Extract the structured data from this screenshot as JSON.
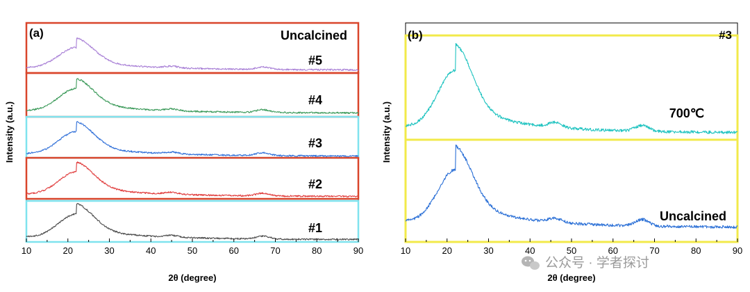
{
  "chart_data": [
    {
      "type": "line",
      "panel_label": "(a)",
      "title": "Uncalcined",
      "xlabel": "2θ (degree)",
      "ylabel": "Intensity (a.u.)",
      "xlim": [
        10,
        90
      ],
      "xticks": [
        "10",
        "20",
        "30",
        "40",
        "50",
        "60",
        "70",
        "80",
        "90"
      ],
      "stacked": true,
      "series": [
        {
          "name": "#5",
          "color": "#a87fd6",
          "box_color": "#d9452b",
          "peaks": [
            {
              "x": 22,
              "rel": 1.0
            },
            {
              "x": 45,
              "rel": 0.08
            },
            {
              "x": 67,
              "rel": 0.12
            }
          ]
        },
        {
          "name": "#4",
          "color": "#3c9a5a",
          "box_color": "#d9452b",
          "peaks": [
            {
              "x": 22,
              "rel": 1.0
            },
            {
              "x": 45,
              "rel": 0.08
            },
            {
              "x": 67,
              "rel": 0.12
            }
          ]
        },
        {
          "name": "#3",
          "color": "#2f6fd8",
          "box_color": "#7fe3ee",
          "peaks": [
            {
              "x": 22,
              "rel": 1.0
            },
            {
              "x": 45,
              "rel": 0.08
            },
            {
              "x": 67,
              "rel": 0.12
            }
          ]
        },
        {
          "name": "#2",
          "color": "#e03c3c",
          "box_color": "#d9452b",
          "peaks": [
            {
              "x": 22,
              "rel": 1.0
            },
            {
              "x": 45,
              "rel": 0.08
            },
            {
              "x": 67,
              "rel": 0.12
            }
          ]
        },
        {
          "name": "#1",
          "color": "#4a4a4a",
          "box_color": "#7fe3ee",
          "peaks": [
            {
              "x": 22,
              "rel": 1.0
            },
            {
              "x": 45,
              "rel": 0.08
            },
            {
              "x": 67,
              "rel": 0.12
            }
          ]
        }
      ],
      "grid": false
    },
    {
      "type": "line",
      "panel_label": "(b)",
      "title": "#3",
      "xlabel": "2θ (degree)",
      "ylabel": "Intensity (a.u.)",
      "xlim": [
        10,
        90
      ],
      "xticks": [
        "10",
        "20",
        "30",
        "40",
        "50",
        "60",
        "70",
        "80",
        "90"
      ],
      "stacked": true,
      "series": [
        {
          "name": "700℃",
          "color": "#1fc3c0",
          "box_color": "#f2ea4a",
          "peaks": [
            {
              "x": 22,
              "rel": 1.0
            },
            {
              "x": 46,
              "rel": 0.08
            },
            {
              "x": 67,
              "rel": 0.1
            }
          ]
        },
        {
          "name": "Uncalcined",
          "color": "#2a6fd6",
          "box_color": "#f2ea4a",
          "peaks": [
            {
              "x": 22,
              "rel": 1.0
            },
            {
              "x": 46,
              "rel": 0.08
            },
            {
              "x": 67,
              "rel": 0.12
            }
          ]
        }
      ],
      "grid": false
    }
  ],
  "watermark": {
    "icon": "wechat-icon",
    "text": "公众号 · 学者探讨"
  }
}
